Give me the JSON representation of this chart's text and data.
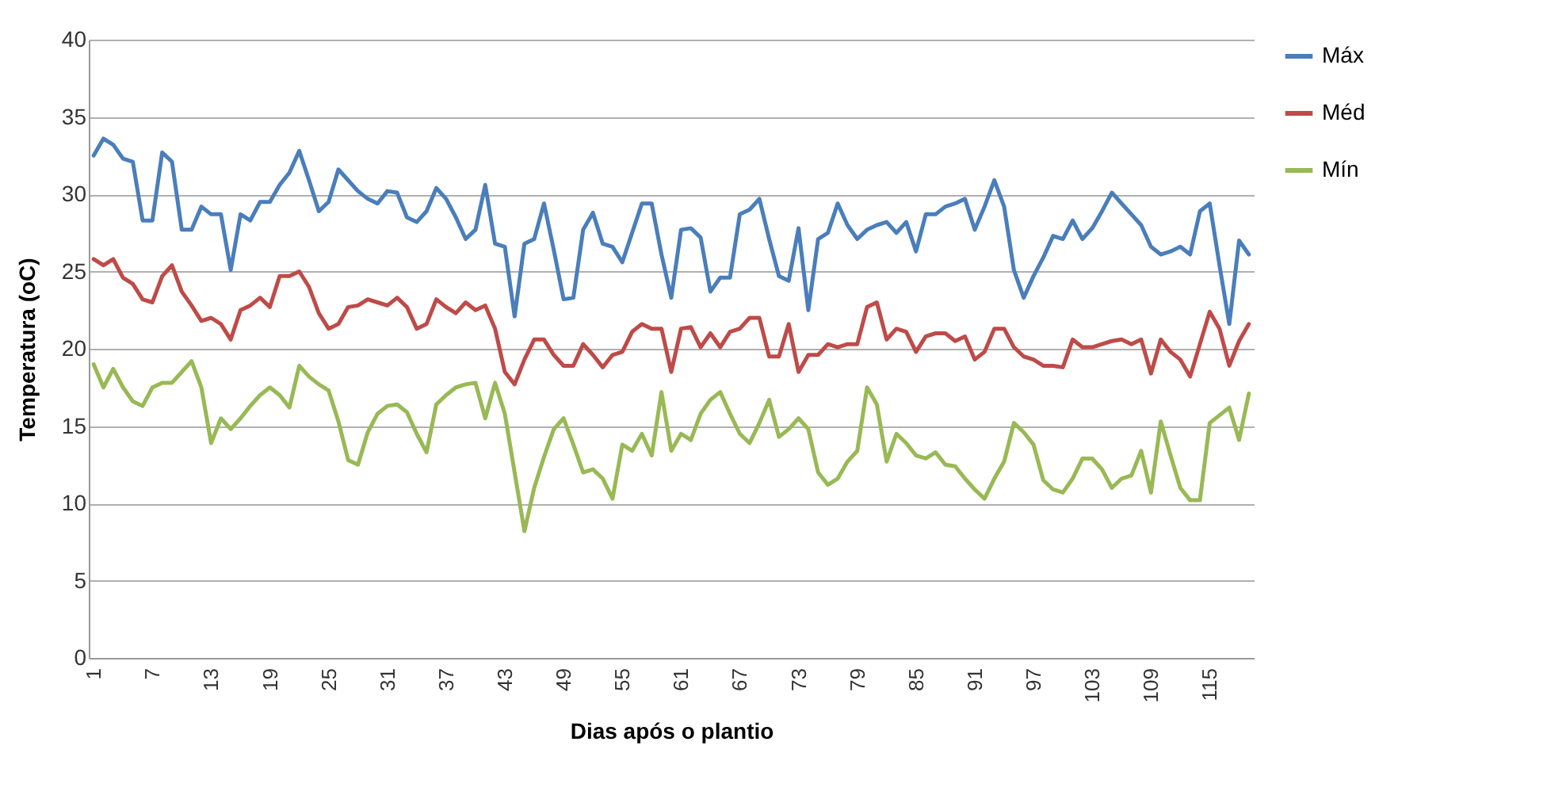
{
  "chart_data": {
    "type": "line",
    "xlabel": "Dias após o plantio",
    "ylabel": "Temperatura (oC)",
    "categories": [
      "1",
      null,
      null,
      null,
      null,
      null,
      "7",
      null,
      null,
      null,
      null,
      null,
      "13",
      null,
      null,
      null,
      null,
      null,
      "19",
      null,
      null,
      null,
      null,
      null,
      "25",
      null,
      null,
      null,
      null,
      null,
      "31",
      null,
      null,
      null,
      null,
      null,
      "37",
      null,
      null,
      null,
      null,
      null,
      "43",
      null,
      null,
      null,
      null,
      null,
      "49",
      null,
      null,
      null,
      null,
      null,
      "55",
      null,
      null,
      null,
      null,
      null,
      "61",
      null,
      null,
      null,
      null,
      null,
      "67",
      null,
      null,
      null,
      null,
      null,
      "73",
      null,
      null,
      null,
      null,
      null,
      "79",
      null,
      null,
      null,
      null,
      null,
      "85",
      null,
      null,
      null,
      null,
      null,
      "91",
      null,
      null,
      null,
      null,
      null,
      "97",
      null,
      null,
      null,
      null,
      null,
      "103",
      null,
      null,
      null,
      null,
      null,
      "109",
      null,
      null,
      null,
      null,
      null,
      "115",
      null,
      null,
      null,
      null
    ],
    "series": [
      {
        "name": "Máx",
        "color": "#4a7ebb",
        "values": [
          32.5,
          33.6,
          33.2,
          32.3,
          32.1,
          28.3,
          28.3,
          32.7,
          32.1,
          27.7,
          27.7,
          29.2,
          28.7,
          28.7,
          25.1,
          28.7,
          28.3,
          29.5,
          29.5,
          30.6,
          31.4,
          32.8,
          30.9,
          28.9,
          29.5,
          31.6,
          30.9,
          30.2,
          29.7,
          29.4,
          30.2,
          30.1,
          28.5,
          28.2,
          28.9,
          30.4,
          29.7,
          28.5,
          27.1,
          27.7,
          30.6,
          26.8,
          26.6,
          22.1,
          26.8,
          27.1,
          29.4,
          26.4,
          23.2,
          23.3,
          27.7,
          28.8,
          26.8,
          26.6,
          25.6,
          27.5,
          29.4,
          29.4,
          26.1,
          23.3,
          27.7,
          27.8,
          27.2,
          23.7,
          24.6,
          24.6,
          28.7,
          29.0,
          29.7,
          27.1,
          24.7,
          24.4,
          27.8,
          22.5,
          27.1,
          27.5,
          29.4,
          28.0,
          27.1,
          27.7,
          28.0,
          28.2,
          27.5,
          28.2,
          26.3,
          28.7,
          28.7,
          29.2,
          29.4,
          29.7,
          27.7,
          29.2,
          30.9,
          29.2,
          25.1,
          23.3,
          24.7,
          25.9,
          27.3,
          27.1,
          28.3,
          27.1,
          27.8,
          28.9,
          30.1,
          29.4,
          28.7,
          28.0,
          26.6,
          26.1,
          26.3,
          26.6,
          26.1,
          28.9,
          29.4,
          25.4,
          21.6,
          27.0,
          26.1
        ]
      },
      {
        "name": "Méd",
        "color": "#be4b48",
        "values": [
          25.8,
          25.4,
          25.8,
          24.6,
          24.2,
          23.2,
          23.0,
          24.7,
          25.4,
          23.7,
          22.8,
          21.8,
          22.0,
          21.6,
          20.6,
          22.5,
          22.8,
          23.3,
          22.7,
          24.7,
          24.7,
          25.0,
          24.0,
          22.3,
          21.3,
          21.6,
          22.7,
          22.8,
          23.2,
          23.0,
          22.8,
          23.3,
          22.7,
          21.3,
          21.6,
          23.2,
          22.7,
          22.3,
          23.0,
          22.5,
          22.8,
          21.3,
          18.5,
          17.7,
          19.3,
          20.6,
          20.6,
          19.6,
          18.9,
          18.9,
          20.3,
          19.6,
          18.8,
          19.6,
          19.8,
          21.1,
          21.6,
          21.3,
          21.3,
          18.5,
          21.3,
          21.4,
          20.1,
          21.0,
          20.1,
          21.1,
          21.3,
          22.0,
          22.0,
          19.5,
          19.5,
          21.6,
          18.5,
          19.6,
          19.6,
          20.3,
          20.1,
          20.3,
          20.3,
          22.7,
          23.0,
          20.6,
          21.3,
          21.1,
          19.8,
          20.8,
          21.0,
          21.0,
          20.5,
          20.8,
          19.3,
          19.8,
          21.3,
          21.3,
          20.1,
          19.5,
          19.3,
          18.9,
          18.9,
          18.8,
          20.6,
          20.1,
          20.1,
          20.3,
          20.5,
          20.6,
          20.3,
          20.6,
          18.4,
          20.6,
          19.8,
          19.3,
          18.2,
          20.3,
          22.4,
          21.3,
          18.9,
          20.5,
          21.6
        ]
      },
      {
        "name": "Mín",
        "color": "#98b954",
        "values": [
          19.0,
          17.5,
          18.7,
          17.5,
          16.6,
          16.3,
          17.5,
          17.8,
          17.8,
          18.5,
          19.2,
          17.5,
          13.9,
          15.5,
          14.8,
          15.5,
          16.3,
          17.0,
          17.5,
          17.0,
          16.2,
          18.9,
          18.2,
          17.7,
          17.3,
          15.3,
          12.8,
          12.5,
          14.6,
          15.8,
          16.3,
          16.4,
          15.9,
          14.5,
          13.3,
          16.4,
          17.0,
          17.5,
          17.7,
          17.8,
          15.5,
          17.8,
          15.8,
          12.0,
          8.2,
          11.0,
          13.0,
          14.8,
          15.5,
          13.8,
          12.0,
          12.2,
          11.6,
          10.3,
          13.8,
          13.4,
          14.5,
          13.1,
          17.2,
          13.4,
          14.5,
          14.1,
          15.8,
          16.7,
          17.2,
          15.8,
          14.5,
          13.9,
          15.2,
          16.7,
          14.3,
          14.8,
          15.5,
          14.8,
          12.0,
          11.2,
          11.6,
          12.7,
          13.4,
          17.5,
          16.4,
          12.7,
          14.5,
          13.9,
          13.1,
          12.9,
          13.3,
          12.5,
          12.4,
          11.6,
          10.9,
          10.3,
          11.6,
          12.7,
          15.2,
          14.6,
          13.8,
          11.5,
          10.9,
          10.7,
          11.6,
          12.9,
          12.9,
          12.2,
          11.0,
          11.6,
          11.8,
          13.4,
          10.7,
          15.3,
          13.1,
          11.0,
          10.2,
          10.2,
          15.2,
          15.7,
          16.2,
          14.1,
          17.1
        ]
      }
    ],
    "ylim": [
      0,
      40
    ],
    "yticks": [
      0,
      5,
      10,
      15,
      20,
      25,
      30,
      35,
      40
    ],
    "grid": "y",
    "legend": "right",
    "marker": "none",
    "line_style": "solid"
  }
}
